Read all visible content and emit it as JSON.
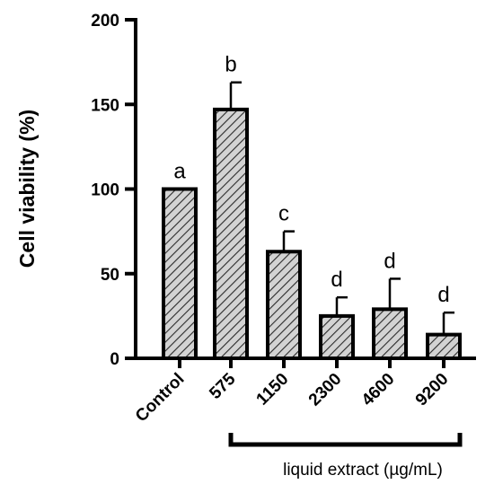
{
  "chart_data": {
    "type": "bar",
    "title": "",
    "xlabel": "",
    "ylabel": "Cell viability (%)",
    "ylim": [
      0,
      200
    ],
    "yticks": [
      "0",
      "50",
      "100",
      "150",
      "200"
    ],
    "categories": [
      "Control",
      "575",
      "1150",
      "2300",
      "4600",
      "9200"
    ],
    "values": [
      100,
      147,
      63,
      25,
      29,
      14
    ],
    "error_upper": [
      0,
      16,
      12,
      11,
      18,
      13
    ],
    "significance_letters": [
      "a",
      "b",
      "c",
      "d",
      "d",
      "d"
    ],
    "bracket_label": "liquid extract (µg/mL)",
    "bracket_categories": [
      "575",
      "1150",
      "2300",
      "4600",
      "9200"
    ],
    "bar_fill": "diagonal-hatch",
    "bar_color": "#d0d0d0",
    "edge_color": "#000000",
    "grid": false,
    "legend": "none"
  }
}
